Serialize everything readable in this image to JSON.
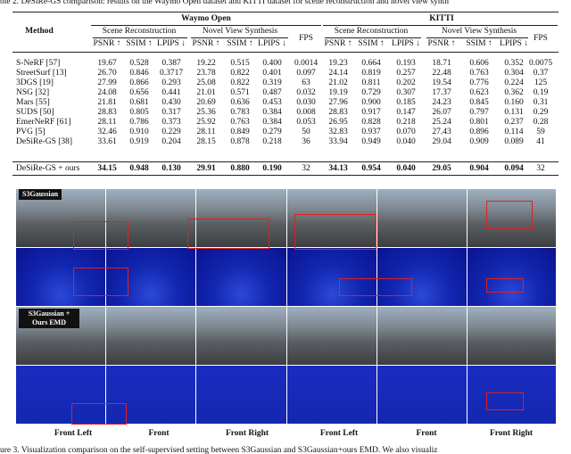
{
  "caption_top": "ble 2. DeSiRe-GS comparison: results on the Waymo Open dataset and KITTI dataset for scene reconstruction and novel view synth",
  "table": {
    "method_header": "Method",
    "groups": [
      "Waymo Open",
      "KITTI"
    ],
    "subgroups": [
      "Scene Reconstruction",
      "Novel View Synthesis",
      "Scene Reconstruction",
      "Novel View Synthesis"
    ],
    "metric_headers": [
      "PSNR ↑",
      "SSIM ↑",
      "LPIPS ↓",
      "PSNR ↑",
      "SSIM ↑",
      "LPIPS ↓",
      "PSNR ↑",
      "SSIM ↑",
      "LPIPS ↓",
      "PSNR ↑",
      "SSIM ↑",
      "LPIPS ↓"
    ],
    "fps_headers": [
      "FPS",
      "FPS"
    ],
    "rows": [
      [
        "S-NeRF [57]",
        "19.67",
        "0.528",
        "0.387",
        "19.22",
        "0.515",
        "0.400",
        "0.0014",
        "19.23",
        "0.664",
        "0.193",
        "18.71",
        "0.606",
        "0.352",
        "0.0075"
      ],
      [
        "StreetSurf [13]",
        "26.70",
        "0.846",
        "0.3717",
        "23.78",
        "0.822",
        "0.401",
        "0.097",
        "24.14",
        "0.819",
        "0.257",
        "22.48",
        "0.763",
        "0.304",
        "0.37"
      ],
      [
        "3DGS [19]",
        "27.99",
        "0.866",
        "0.293",
        "25.08",
        "0.822",
        "0.319",
        "63",
        "21.02",
        "0.811",
        "0.202",
        "19.54",
        "0.776",
        "0.224",
        "125"
      ],
      [
        "NSG [32]",
        "24.08",
        "0.656",
        "0.441",
        "21.01",
        "0.571",
        "0.487",
        "0.032",
        "19.19",
        "0.729",
        "0.307",
        "17.37",
        "0.623",
        "0.362",
        "0.19"
      ],
      [
        "Mars [55]",
        "21.81",
        "0.681",
        "0.430",
        "20.69",
        "0.636",
        "0.453",
        "0.030",
        "27.96",
        "0.900",
        "0.185",
        "24.23",
        "0.845",
        "0.160",
        "0.31"
      ],
      [
        "SUDS [50]",
        "28.83",
        "0.805",
        "0.317",
        "25.36",
        "0.783",
        "0.384",
        "0.008",
        "28.83",
        "0.917",
        "0.147",
        "26.07",
        "0.797",
        "0.131",
        "0.29"
      ],
      [
        "EmerNeRF [61]",
        "28.11",
        "0.786",
        "0.373",
        "25.92",
        "0.763",
        "0.384",
        "0.053",
        "26.95",
        "0.828",
        "0.218",
        "25.24",
        "0.801",
        "0.237",
        "0.28"
      ],
      [
        "PVG [5]",
        "32.46",
        "0.910",
        "0.229",
        "28.11",
        "0.849",
        "0.279",
        "50",
        "32.83",
        "0.937",
        "0.070",
        "27.43",
        "0.896",
        "0.114",
        "59"
      ],
      [
        "DeSiRe-GS [38]",
        "33.61",
        "0.919",
        "0.204",
        "28.15",
        "0.878",
        "0.218",
        "36",
        "33.94",
        "0.949",
        "0.040",
        "29.04",
        "0.909",
        "0.089",
        "41"
      ],
      [
        "DeSiRe-GS + ours",
        "34.15",
        "0.948",
        "0.130",
        "29.91",
        "0.880",
        "0.190",
        "32",
        "34.13",
        "0.954",
        "0.040",
        "29.05",
        "0.904",
        "0.094",
        "32"
      ]
    ]
  },
  "figure": {
    "labels": [
      "S3Gaussian",
      "S3Gaussian + Ours EMD"
    ],
    "views": [
      "Front Left",
      "Front",
      "Front Right",
      "Front Left",
      "Front",
      "Front Right"
    ]
  },
  "caption_bottom": "ure 3. Visualization comparison on the self-supervised setting between S3Gaussian and S3Gaussian+ours EMD. We also visualiz"
}
